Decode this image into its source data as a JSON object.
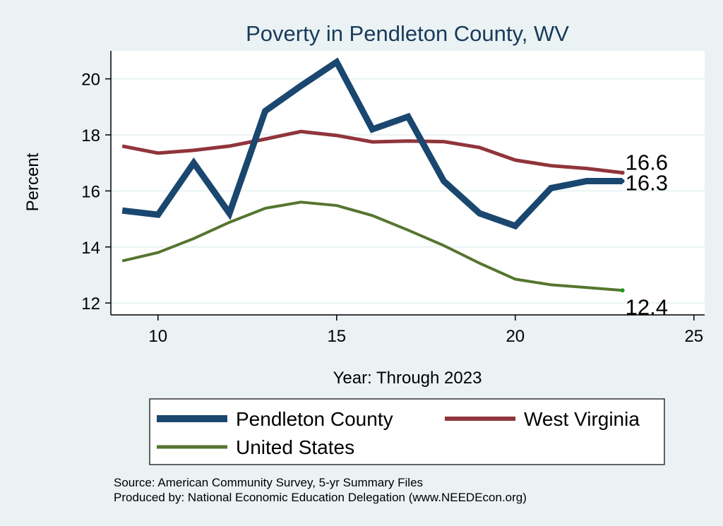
{
  "chart_data": {
    "type": "line",
    "title": "Poverty in Pendleton County, WV",
    "xlabel": "Year: Through 2023",
    "ylabel": "Percent",
    "xlim": [
      8.7,
      25.3
    ],
    "ylim": [
      11.6,
      21
    ],
    "xticks": [
      10,
      15,
      20,
      25
    ],
    "yticks": [
      12,
      14,
      16,
      18,
      20
    ],
    "x": [
      9,
      10,
      11,
      12,
      13,
      14,
      15,
      16,
      17,
      18,
      19,
      20,
      21,
      22,
      23
    ],
    "series": [
      {
        "name": "Pendleton County",
        "color": "#1a476f",
        "values": [
          15.3,
          15.15,
          17.0,
          15.2,
          18.85,
          19.75,
          20.6,
          18.2,
          18.65,
          16.35,
          15.2,
          14.75,
          16.1,
          16.35,
          16.35
        ],
        "end_label": "16.3"
      },
      {
        "name": "West Virginia",
        "color": "#90353b",
        "values": [
          17.6,
          17.35,
          17.45,
          17.6,
          17.85,
          18.12,
          17.98,
          17.75,
          17.78,
          17.76,
          17.55,
          17.1,
          16.9,
          16.8,
          16.65
        ],
        "end_label": "16.6"
      },
      {
        "name": "United States",
        "color": "#55752f",
        "values": [
          13.5,
          13.8,
          14.3,
          14.88,
          15.38,
          15.6,
          15.48,
          15.12,
          14.6,
          14.05,
          13.42,
          12.85,
          12.65,
          12.55,
          12.45
        ],
        "end_label": "12.4"
      }
    ],
    "legend_position": "bottom"
  },
  "footer": {
    "source": "Source: American Community Survey, 5-yr Summary Files",
    "producer": "Produced by: National Economic Education Delegation (www.NEEDEcon.org)"
  }
}
